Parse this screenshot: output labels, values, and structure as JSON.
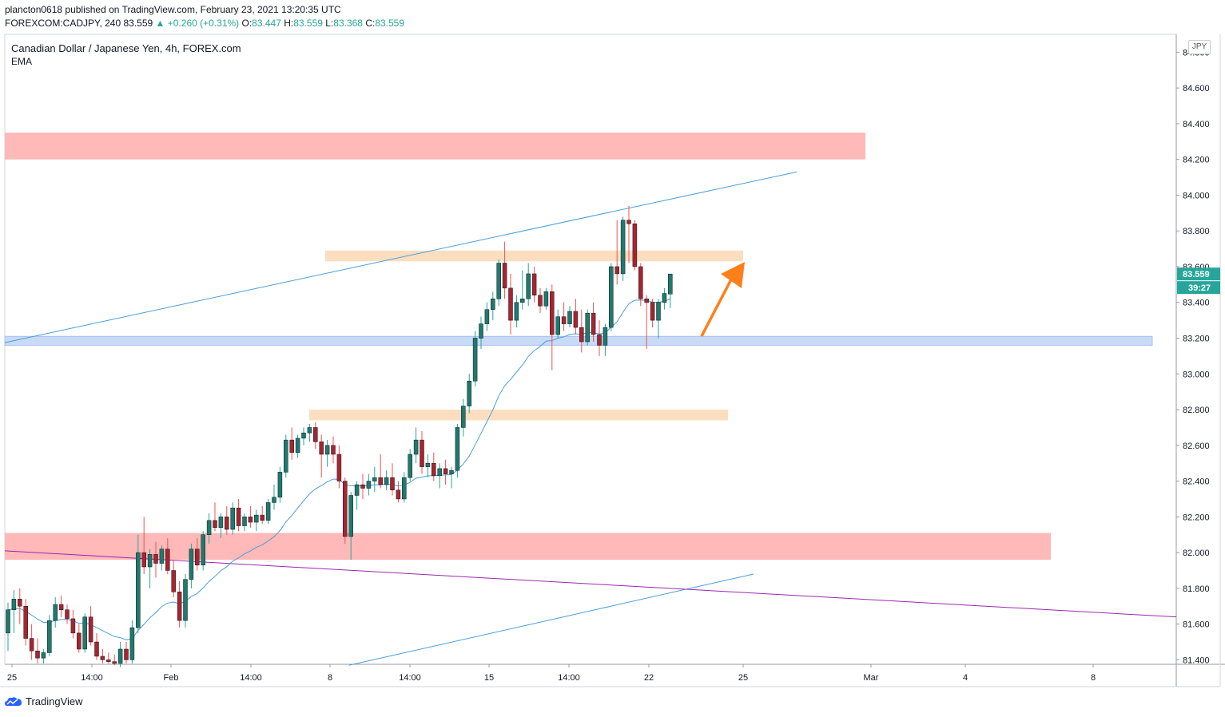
{
  "header": {
    "line1": "plancton0618 published on TradingView.com, February 23, 2021 13:20:35 UTC",
    "symbol": "FOREXCOM:CADJPY, 240",
    "last": "83.559",
    "change": "▲ +0.260 (+0.31%)",
    "o_label": "O:",
    "o_val": "83.447",
    "h_label": "H:",
    "h_val": "83.559",
    "l_label": "L:",
    "l_val": "83.368",
    "c_label": "C:",
    "c_val": "83.559"
  },
  "legend": {
    "title": "Canadian Dollar / Japanese Yen, 4h, FOREX.com",
    "indicator": "EMA"
  },
  "price_axis": {
    "currency": "JPY",
    "current_price": "83.559",
    "countdown": "39:27"
  },
  "footer": {
    "brand": "TradingView"
  },
  "colors": {
    "up": "#26a69a",
    "down": "#ef5350",
    "candle_up_body": "#1e7a6d",
    "candle_down_body": "#a8242f",
    "ema": "#4a9ed8",
    "trendline": "#4a9ed8",
    "purple_line": "#9c27b0",
    "resistance_zone": "#ffb5b5",
    "orange_zone": "#fad6b0",
    "support_zone": "#c5d8f5",
    "arrow": "#ff7f1a"
  },
  "chart_data": {
    "type": "candlestick",
    "title": "Canadian Dollar / Japanese Yen, 4h, FOREX.com",
    "indicator": "EMA",
    "y_ticks": [
      "84.800",
      "84.600",
      "84.400",
      "84.200",
      "84.000",
      "83.800",
      "83.600",
      "83.400",
      "83.200",
      "83.000",
      "82.800",
      "82.600",
      "82.400",
      "82.200",
      "82.000",
      "81.800",
      "81.600",
      "81.400"
    ],
    "x_ticks": [
      "25",
      "14:00",
      "Feb",
      "14:00",
      "8",
      "14:00",
      "15",
      "14:00",
      "22",
      "25",
      "Mar",
      "4",
      "8"
    ],
    "ylim": [
      81.4,
      84.8
    ],
    "zones": [
      {
        "kind": "resistance",
        "from": 84.2,
        "to": 84.35
      },
      {
        "kind": "orange",
        "from": 83.63,
        "to": 83.69
      },
      {
        "kind": "support",
        "from": 83.16,
        "to": 83.21
      },
      {
        "kind": "orange",
        "from": 82.74,
        "to": 82.8
      },
      {
        "kind": "resistance",
        "from": 81.96,
        "to": 82.11
      }
    ],
    "candles": [
      {
        "o": 81.55,
        "h": 81.72,
        "l": 81.45,
        "c": 81.68
      },
      {
        "o": 81.68,
        "h": 81.79,
        "l": 81.55,
        "c": 81.74
      },
      {
        "o": 81.74,
        "h": 81.8,
        "l": 81.6,
        "c": 81.7
      },
      {
        "o": 81.7,
        "h": 81.74,
        "l": 81.48,
        "c": 81.52
      },
      {
        "o": 81.52,
        "h": 81.6,
        "l": 81.4,
        "c": 81.45
      },
      {
        "o": 81.45,
        "h": 81.52,
        "l": 81.38,
        "c": 81.41
      },
      {
        "o": 81.41,
        "h": 81.46,
        "l": 81.38,
        "c": 81.44
      },
      {
        "o": 81.44,
        "h": 81.65,
        "l": 81.42,
        "c": 81.62
      },
      {
        "o": 81.62,
        "h": 81.75,
        "l": 81.58,
        "c": 81.71
      },
      {
        "o": 81.71,
        "h": 81.76,
        "l": 81.64,
        "c": 81.68
      },
      {
        "o": 81.68,
        "h": 81.71,
        "l": 81.6,
        "c": 81.63
      },
      {
        "o": 81.63,
        "h": 81.68,
        "l": 81.52,
        "c": 81.55
      },
      {
        "o": 81.55,
        "h": 81.6,
        "l": 81.44,
        "c": 81.46
      },
      {
        "o": 81.46,
        "h": 81.66,
        "l": 81.44,
        "c": 81.64
      },
      {
        "o": 81.64,
        "h": 81.7,
        "l": 81.48,
        "c": 81.5
      },
      {
        "o": 81.5,
        "h": 81.55,
        "l": 81.4,
        "c": 81.42
      },
      {
        "o": 81.42,
        "h": 81.46,
        "l": 81.38,
        "c": 81.4
      },
      {
        "o": 81.4,
        "h": 81.44,
        "l": 81.38,
        "c": 81.39
      },
      {
        "o": 81.39,
        "h": 81.43,
        "l": 81.37,
        "c": 81.38
      },
      {
        "o": 81.38,
        "h": 81.5,
        "l": 81.36,
        "c": 81.46
      },
      {
        "o": 81.46,
        "h": 81.5,
        "l": 81.38,
        "c": 81.4
      },
      {
        "o": 81.4,
        "h": 81.62,
        "l": 81.38,
        "c": 81.58
      },
      {
        "o": 81.58,
        "h": 82.1,
        "l": 81.55,
        "c": 82.0
      },
      {
        "o": 82.0,
        "h": 82.2,
        "l": 81.88,
        "c": 81.92
      },
      {
        "o": 81.92,
        "h": 82.02,
        "l": 81.8,
        "c": 81.99
      },
      {
        "o": 81.99,
        "h": 82.06,
        "l": 81.86,
        "c": 81.94
      },
      {
        "o": 81.94,
        "h": 82.04,
        "l": 81.9,
        "c": 82.02
      },
      {
        "o": 82.02,
        "h": 82.08,
        "l": 81.88,
        "c": 81.9
      },
      {
        "o": 81.9,
        "h": 81.96,
        "l": 81.75,
        "c": 81.78
      },
      {
        "o": 81.78,
        "h": 81.84,
        "l": 81.58,
        "c": 81.62
      },
      {
        "o": 81.62,
        "h": 81.88,
        "l": 81.58,
        "c": 81.85
      },
      {
        "o": 81.85,
        "h": 82.05,
        "l": 81.8,
        "c": 82.02
      },
      {
        "o": 82.02,
        "h": 82.08,
        "l": 81.9,
        "c": 81.93
      },
      {
        "o": 81.93,
        "h": 82.12,
        "l": 81.9,
        "c": 82.1
      },
      {
        "o": 82.1,
        "h": 82.22,
        "l": 82.05,
        "c": 82.18
      },
      {
        "o": 82.18,
        "h": 82.28,
        "l": 82.12,
        "c": 82.14
      },
      {
        "o": 82.14,
        "h": 82.22,
        "l": 82.08,
        "c": 82.2
      },
      {
        "o": 82.2,
        "h": 82.26,
        "l": 82.1,
        "c": 82.13
      },
      {
        "o": 82.13,
        "h": 82.28,
        "l": 82.1,
        "c": 82.25
      },
      {
        "o": 82.25,
        "h": 82.3,
        "l": 82.12,
        "c": 82.15
      },
      {
        "o": 82.15,
        "h": 82.22,
        "l": 82.12,
        "c": 82.2
      },
      {
        "o": 82.2,
        "h": 82.26,
        "l": 82.14,
        "c": 82.17
      },
      {
        "o": 82.17,
        "h": 82.24,
        "l": 82.12,
        "c": 82.21
      },
      {
        "o": 82.21,
        "h": 82.26,
        "l": 82.16,
        "c": 82.18
      },
      {
        "o": 82.18,
        "h": 82.3,
        "l": 82.16,
        "c": 82.28
      },
      {
        "o": 82.28,
        "h": 82.38,
        "l": 82.24,
        "c": 82.31
      },
      {
        "o": 82.31,
        "h": 82.48,
        "l": 82.28,
        "c": 82.45
      },
      {
        "o": 82.45,
        "h": 82.66,
        "l": 82.42,
        "c": 82.63
      },
      {
        "o": 82.63,
        "h": 82.7,
        "l": 82.52,
        "c": 82.56
      },
      {
        "o": 82.56,
        "h": 82.66,
        "l": 82.53,
        "c": 82.64
      },
      {
        "o": 82.64,
        "h": 82.7,
        "l": 82.6,
        "c": 82.67
      },
      {
        "o": 82.67,
        "h": 82.72,
        "l": 82.62,
        "c": 82.7
      },
      {
        "o": 82.7,
        "h": 82.73,
        "l": 82.58,
        "c": 82.62
      },
      {
        "o": 82.62,
        "h": 82.66,
        "l": 82.42,
        "c": 82.55
      },
      {
        "o": 82.55,
        "h": 82.63,
        "l": 82.48,
        "c": 82.6
      },
      {
        "o": 82.6,
        "h": 82.65,
        "l": 82.5,
        "c": 82.55
      },
      {
        "o": 82.55,
        "h": 82.6,
        "l": 82.36,
        "c": 82.4
      },
      {
        "o": 82.4,
        "h": 82.42,
        "l": 82.05,
        "c": 82.09
      },
      {
        "o": 82.09,
        "h": 82.34,
        "l": 81.96,
        "c": 82.32
      },
      {
        "o": 82.32,
        "h": 82.4,
        "l": 82.24,
        "c": 82.38
      },
      {
        "o": 82.38,
        "h": 82.44,
        "l": 82.3,
        "c": 82.36
      },
      {
        "o": 82.36,
        "h": 82.44,
        "l": 82.32,
        "c": 82.4
      },
      {
        "o": 82.4,
        "h": 82.48,
        "l": 82.34,
        "c": 82.42
      },
      {
        "o": 82.42,
        "h": 82.55,
        "l": 82.36,
        "c": 82.38
      },
      {
        "o": 82.38,
        "h": 82.46,
        "l": 82.35,
        "c": 82.42
      },
      {
        "o": 82.42,
        "h": 82.5,
        "l": 82.32,
        "c": 82.35
      },
      {
        "o": 82.35,
        "h": 82.4,
        "l": 82.28,
        "c": 82.3
      },
      {
        "o": 82.3,
        "h": 82.45,
        "l": 82.28,
        "c": 82.42
      },
      {
        "o": 82.42,
        "h": 82.58,
        "l": 82.4,
        "c": 82.55
      },
      {
        "o": 82.55,
        "h": 82.7,
        "l": 82.5,
        "c": 82.63
      },
      {
        "o": 82.63,
        "h": 82.68,
        "l": 82.44,
        "c": 82.48
      },
      {
        "o": 82.48,
        "h": 82.55,
        "l": 82.42,
        "c": 82.5
      },
      {
        "o": 82.5,
        "h": 82.56,
        "l": 82.4,
        "c": 82.43
      },
      {
        "o": 82.43,
        "h": 82.5,
        "l": 82.36,
        "c": 82.47
      },
      {
        "o": 82.47,
        "h": 82.52,
        "l": 82.38,
        "c": 82.44
      },
      {
        "o": 82.44,
        "h": 82.48,
        "l": 82.36,
        "c": 82.46
      },
      {
        "o": 82.46,
        "h": 82.72,
        "l": 82.42,
        "c": 82.7
      },
      {
        "o": 82.7,
        "h": 82.86,
        "l": 82.65,
        "c": 82.82
      },
      {
        "o": 82.82,
        "h": 83.0,
        "l": 82.78,
        "c": 82.96
      },
      {
        "o": 82.96,
        "h": 83.24,
        "l": 82.93,
        "c": 83.2
      },
      {
        "o": 83.2,
        "h": 83.32,
        "l": 83.14,
        "c": 83.28
      },
      {
        "o": 83.28,
        "h": 83.4,
        "l": 83.24,
        "c": 83.36
      },
      {
        "o": 83.36,
        "h": 83.46,
        "l": 83.3,
        "c": 83.42
      },
      {
        "o": 83.42,
        "h": 83.64,
        "l": 83.38,
        "c": 83.62
      },
      {
        "o": 83.62,
        "h": 83.74,
        "l": 83.42,
        "c": 83.48
      },
      {
        "o": 83.48,
        "h": 83.56,
        "l": 83.22,
        "c": 83.3
      },
      {
        "o": 83.3,
        "h": 83.44,
        "l": 83.26,
        "c": 83.4
      },
      {
        "o": 83.4,
        "h": 83.58,
        "l": 83.36,
        "c": 83.42
      },
      {
        "o": 83.42,
        "h": 83.62,
        "l": 83.38,
        "c": 83.56
      },
      {
        "o": 83.56,
        "h": 83.6,
        "l": 83.4,
        "c": 83.44
      },
      {
        "o": 83.44,
        "h": 83.48,
        "l": 83.34,
        "c": 83.38
      },
      {
        "o": 83.38,
        "h": 83.48,
        "l": 83.36,
        "c": 83.46
      },
      {
        "o": 83.46,
        "h": 83.5,
        "l": 83.02,
        "c": 83.22
      },
      {
        "o": 83.22,
        "h": 83.36,
        "l": 83.2,
        "c": 83.32
      },
      {
        "o": 83.32,
        "h": 83.4,
        "l": 83.24,
        "c": 83.28
      },
      {
        "o": 83.28,
        "h": 83.38,
        "l": 83.26,
        "c": 83.35
      },
      {
        "o": 83.35,
        "h": 83.42,
        "l": 83.22,
        "c": 83.26
      },
      {
        "o": 83.26,
        "h": 83.36,
        "l": 83.12,
        "c": 83.18
      },
      {
        "o": 83.18,
        "h": 83.36,
        "l": 83.16,
        "c": 83.34
      },
      {
        "o": 83.34,
        "h": 83.4,
        "l": 83.18,
        "c": 83.22
      },
      {
        "o": 83.22,
        "h": 83.3,
        "l": 83.1,
        "c": 83.16
      },
      {
        "o": 83.16,
        "h": 83.28,
        "l": 83.1,
        "c": 83.26
      },
      {
        "o": 83.26,
        "h": 83.62,
        "l": 83.24,
        "c": 83.6
      },
      {
        "o": 83.6,
        "h": 83.86,
        "l": 83.5,
        "c": 83.56
      },
      {
        "o": 83.56,
        "h": 83.88,
        "l": 83.52,
        "c": 83.86
      },
      {
        "o": 83.86,
        "h": 83.94,
        "l": 83.62,
        "c": 83.84
      },
      {
        "o": 83.84,
        "h": 83.86,
        "l": 83.58,
        "c": 83.6
      },
      {
        "o": 83.6,
        "h": 83.62,
        "l": 83.38,
        "c": 83.42
      },
      {
        "o": 83.42,
        "h": 83.44,
        "l": 83.14,
        "c": 83.4
      },
      {
        "o": 83.4,
        "h": 83.42,
        "l": 83.26,
        "c": 83.3
      },
      {
        "o": 83.3,
        "h": 83.42,
        "l": 83.2,
        "c": 83.4
      },
      {
        "o": 83.4,
        "h": 83.48,
        "l": 83.36,
        "c": 83.45
      },
      {
        "o": 83.447,
        "h": 83.559,
        "l": 83.368,
        "c": 83.559
      }
    ]
  }
}
